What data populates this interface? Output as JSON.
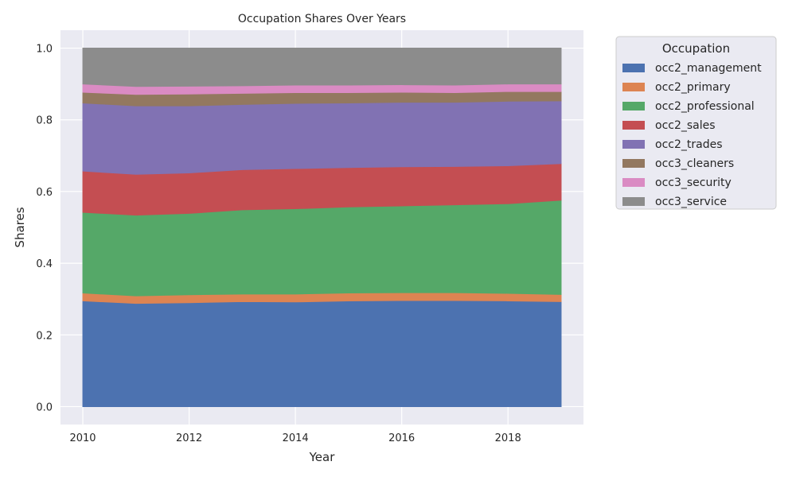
{
  "chart_data": {
    "type": "area",
    "stacked": true,
    "title": "Occupation Shares Over Years",
    "xlabel": "Year",
    "ylabel": "Shares",
    "x": [
      2010,
      2011,
      2012,
      2013,
      2014,
      2015,
      2016,
      2017,
      2018,
      2019
    ],
    "xlim": [
      2009.58,
      2019.42
    ],
    "ylim": [
      -0.05,
      1.05
    ],
    "xticks": [
      "2010",
      "2012",
      "2014",
      "2016",
      "2018"
    ],
    "yticks": [
      "0.0",
      "0.2",
      "0.4",
      "0.6",
      "0.8",
      "1.0"
    ],
    "grid": true,
    "legend_title": "Occupation",
    "legend_placement": "outside upper right",
    "series": [
      {
        "name": "occ2_management",
        "color": "#4c72b0",
        "values": [
          0.295,
          0.288,
          0.29,
          0.293,
          0.292,
          0.295,
          0.296,
          0.296,
          0.295,
          0.293
        ]
      },
      {
        "name": "occ2_primary",
        "color": "#dd8452",
        "values": [
          0.022,
          0.021,
          0.022,
          0.021,
          0.022,
          0.022,
          0.022,
          0.022,
          0.021,
          0.02
        ]
      },
      {
        "name": "occ2_professional",
        "color": "#55a868",
        "values": [
          0.225,
          0.225,
          0.227,
          0.235,
          0.238,
          0.24,
          0.242,
          0.245,
          0.25,
          0.263
        ]
      },
      {
        "name": "occ2_sales",
        "color": "#c44e52",
        "values": [
          0.115,
          0.114,
          0.113,
          0.112,
          0.112,
          0.11,
          0.109,
          0.107,
          0.106,
          0.102
        ]
      },
      {
        "name": "occ2_trades",
        "color": "#8172b3",
        "values": [
          0.19,
          0.191,
          0.187,
          0.182,
          0.182,
          0.18,
          0.18,
          0.179,
          0.18,
          0.175
        ]
      },
      {
        "name": "occ3_cleaners",
        "color": "#937860",
        "values": [
          0.03,
          0.032,
          0.033,
          0.031,
          0.03,
          0.029,
          0.028,
          0.027,
          0.027,
          0.026
        ]
      },
      {
        "name": "occ3_security",
        "color": "#da8bc3",
        "values": [
          0.023,
          0.022,
          0.022,
          0.021,
          0.021,
          0.021,
          0.021,
          0.021,
          0.021,
          0.021
        ]
      },
      {
        "name": "occ3_service",
        "color": "#8c8c8c",
        "values": [
          0.1,
          0.107,
          0.106,
          0.105,
          0.103,
          0.103,
          0.102,
          0.103,
          0.1,
          0.1
        ]
      }
    ]
  }
}
